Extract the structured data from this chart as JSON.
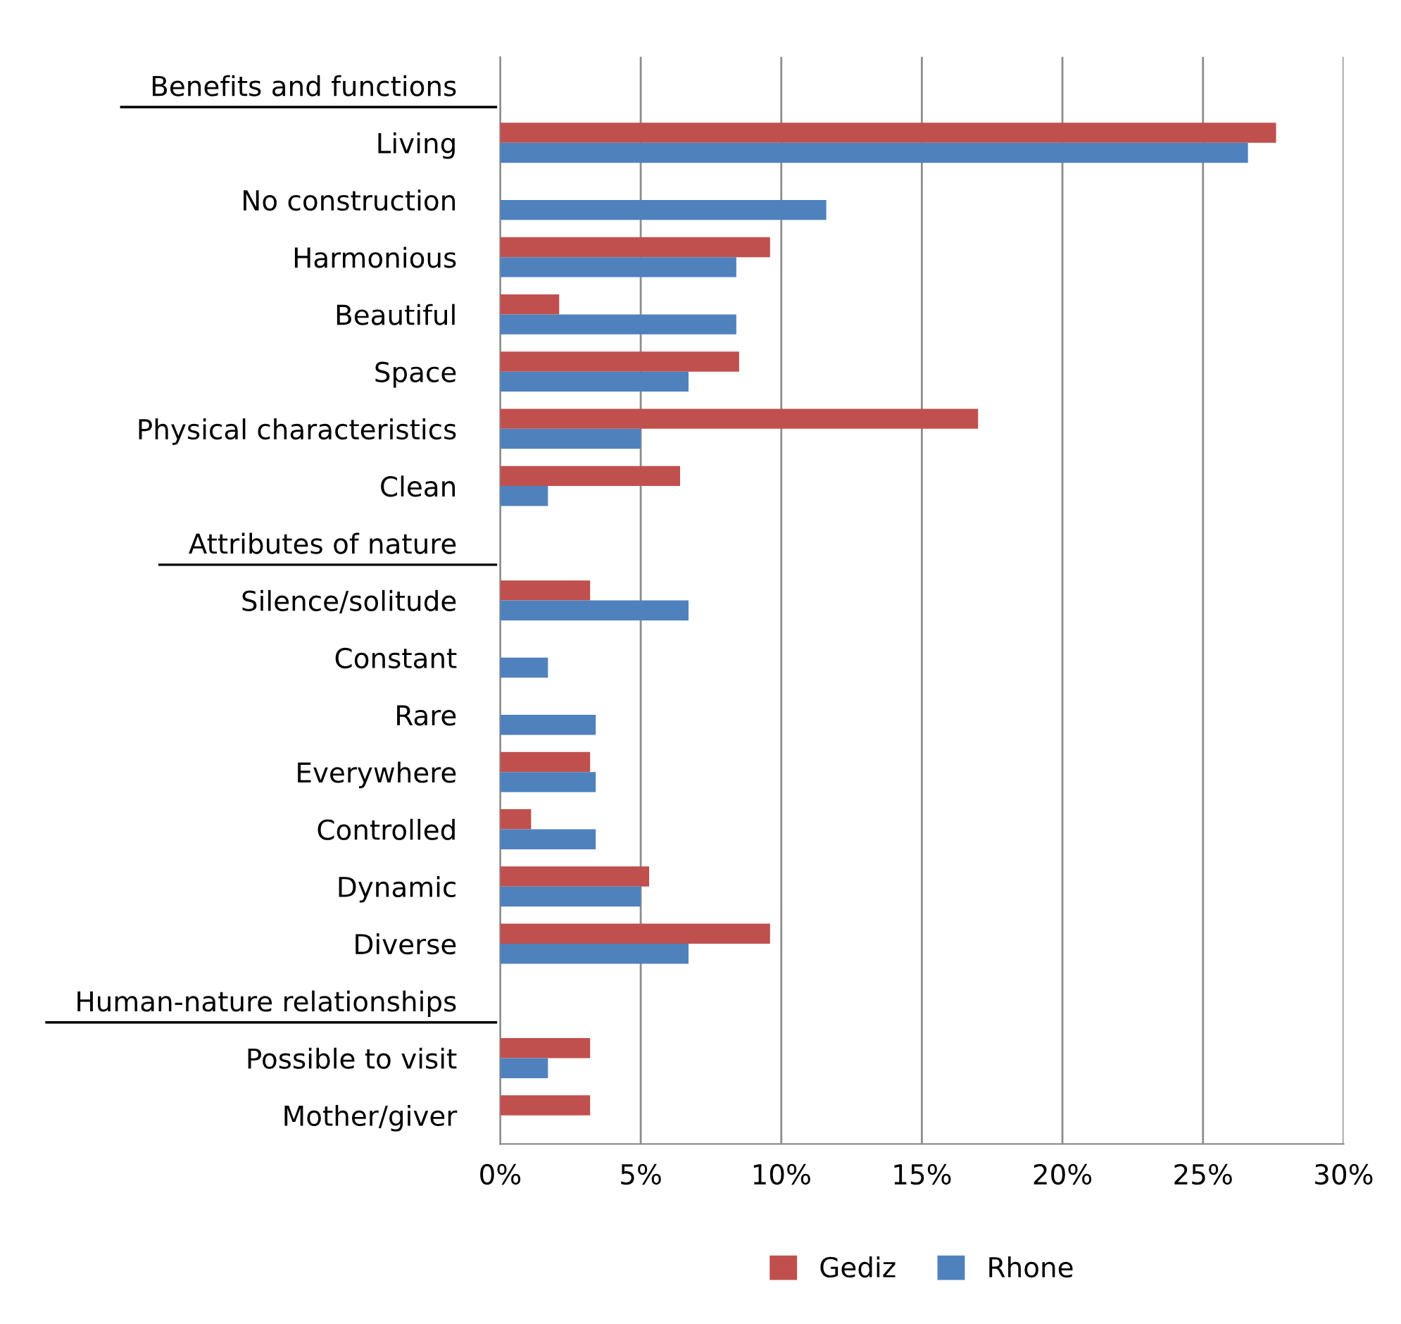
{
  "chart_data": {
    "type": "bar",
    "orientation": "horizontal",
    "categories": [
      "Benefits and functions",
      "Living",
      "No construction",
      "Harmonious",
      "Beautiful",
      "Space",
      "Physical characteristics",
      "Clean",
      "Attributes of nature",
      "Silence/solitude",
      "Constant",
      "Rare",
      "Everywhere",
      "Controlled",
      "Dynamic",
      "Diverse",
      "Human-nature relationships",
      "Possible to visit",
      "Mother/giver"
    ],
    "series": [
      {
        "name": "Gediz",
        "color": "#c0504d",
        "values": [
          null,
          27.6,
          null,
          9.6,
          2.1,
          8.5,
          17.0,
          6.4,
          null,
          3.2,
          null,
          null,
          3.2,
          1.1,
          5.3,
          9.6,
          null,
          3.2,
          3.2
        ]
      },
      {
        "name": "Rhone",
        "color": "#4f81bd",
        "values": [
          null,
          26.6,
          11.6,
          8.4,
          8.4,
          6.7,
          5.0,
          1.7,
          null,
          6.7,
          1.7,
          3.4,
          3.4,
          3.4,
          5.0,
          6.7,
          null,
          1.7,
          null
        ]
      }
    ],
    "xlim": [
      0,
      30
    ],
    "xticks": [
      {
        "value": 0,
        "label": "0%"
      },
      {
        "value": 5,
        "label": "5%"
      },
      {
        "value": 10,
        "label": "10%"
      },
      {
        "value": 15,
        "label": "15%"
      },
      {
        "value": 20,
        "label": "20%"
      },
      {
        "value": 25,
        "label": "25%"
      },
      {
        "value": 30,
        "label": "30%"
      }
    ],
    "grid": "x",
    "legend": "bottom"
  }
}
